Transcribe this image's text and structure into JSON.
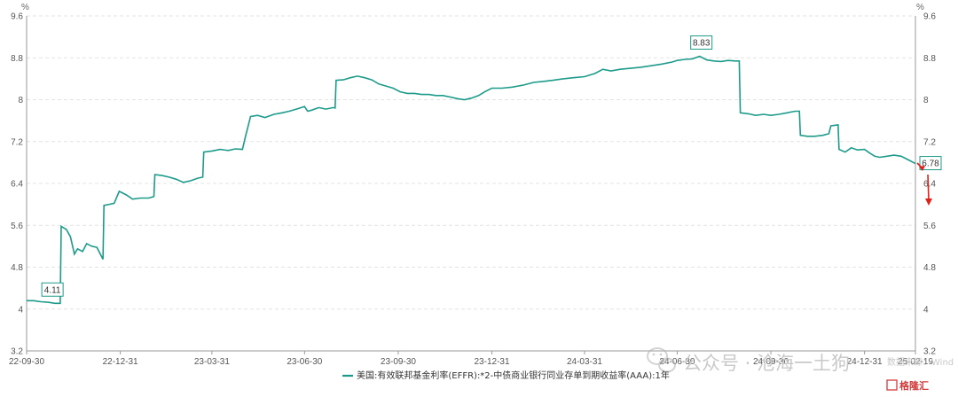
{
  "chart_data": {
    "type": "line",
    "y_unit_left": "%",
    "y_unit_right": "%",
    "ylim": [
      3.2,
      9.6
    ],
    "y_ticks": [
      "3.2",
      "4",
      "4.8",
      "5.6",
      "6.4",
      "7.2",
      "8",
      "8.8",
      "9.6"
    ],
    "x_ticks": [
      "22-09-30",
      "22-12-31",
      "23-03-31",
      "23-06-30",
      "23-09-30",
      "23-12-31",
      "24-03-31",
      "24-06-30",
      "24-09-30",
      "24-12-31",
      "25-02-19"
    ],
    "grid": true,
    "legend_position": "bottom-center",
    "series": [
      {
        "name": "美国:有效联邦基金利率(EFFR):*2-中债商业银行同业存单到期收益率(AAA):1年",
        "color": "#1d9b8a",
        "points": [
          [
            "2022-09-30",
            4.16
          ],
          [
            "2022-10-07",
            4.16
          ],
          [
            "2022-10-14",
            4.14
          ],
          [
            "2022-10-21",
            4.13
          ],
          [
            "2022-10-28",
            4.11
          ],
          [
            "2022-11-02",
            4.11
          ],
          [
            "2022-11-03",
            5.58
          ],
          [
            "2022-11-08",
            5.52
          ],
          [
            "2022-11-12",
            5.38
          ],
          [
            "2022-11-16",
            5.05
          ],
          [
            "2022-11-19",
            5.15
          ],
          [
            "2022-11-24",
            5.1
          ],
          [
            "2022-11-28",
            5.25
          ],
          [
            "2022-12-03",
            5.2
          ],
          [
            "2022-12-08",
            5.18
          ],
          [
            "2022-12-14",
            4.95
          ],
          [
            "2022-12-15",
            5.98
          ],
          [
            "2022-12-20",
            6.0
          ],
          [
            "2022-12-25",
            6.02
          ],
          [
            "2022-12-30",
            6.25
          ],
          [
            "2023-01-06",
            6.18
          ],
          [
            "2023-01-12",
            6.1
          ],
          [
            "2023-01-20",
            6.12
          ],
          [
            "2023-01-28",
            6.12
          ],
          [
            "2023-02-02",
            6.15
          ],
          [
            "2023-02-03",
            6.57
          ],
          [
            "2023-02-10",
            6.55
          ],
          [
            "2023-02-17",
            6.52
          ],
          [
            "2023-02-24",
            6.48
          ],
          [
            "2023-03-03",
            6.42
          ],
          [
            "2023-03-10",
            6.45
          ],
          [
            "2023-03-17",
            6.5
          ],
          [
            "2023-03-22",
            6.52
          ],
          [
            "2023-03-23",
            7.0
          ],
          [
            "2023-03-31",
            7.02
          ],
          [
            "2023-04-08",
            7.05
          ],
          [
            "2023-04-16",
            7.03
          ],
          [
            "2023-04-23",
            7.06
          ],
          [
            "2023-04-30",
            7.05
          ],
          [
            "2023-05-03",
            7.3
          ],
          [
            "2023-05-08",
            7.68
          ],
          [
            "2023-05-15",
            7.7
          ],
          [
            "2023-05-22",
            7.66
          ],
          [
            "2023-05-31",
            7.72
          ],
          [
            "2023-06-08",
            7.75
          ],
          [
            "2023-06-15",
            7.78
          ],
          [
            "2023-06-22",
            7.82
          ],
          [
            "2023-06-30",
            7.87
          ],
          [
            "2023-07-03",
            7.78
          ],
          [
            "2023-07-07",
            7.8
          ],
          [
            "2023-07-14",
            7.85
          ],
          [
            "2023-07-21",
            7.82
          ],
          [
            "2023-07-28",
            7.85
          ],
          [
            "2023-07-30",
            7.84
          ],
          [
            "2023-07-31",
            8.37
          ],
          [
            "2023-08-07",
            8.38
          ],
          [
            "2023-08-14",
            8.42
          ],
          [
            "2023-08-21",
            8.45
          ],
          [
            "2023-08-28",
            8.42
          ],
          [
            "2023-09-04",
            8.38
          ],
          [
            "2023-09-11",
            8.3
          ],
          [
            "2023-09-18",
            8.26
          ],
          [
            "2023-09-25",
            8.22
          ],
          [
            "2023-10-02",
            8.15
          ],
          [
            "2023-10-09",
            8.12
          ],
          [
            "2023-10-16",
            8.12
          ],
          [
            "2023-10-23",
            8.1
          ],
          [
            "2023-10-30",
            8.1
          ],
          [
            "2023-11-06",
            8.08
          ],
          [
            "2023-11-13",
            8.08
          ],
          [
            "2023-11-20",
            8.05
          ],
          [
            "2023-11-27",
            8.02
          ],
          [
            "2023-12-04",
            8.0
          ],
          [
            "2023-12-11",
            8.03
          ],
          [
            "2023-12-18",
            8.08
          ],
          [
            "2023-12-24",
            8.15
          ],
          [
            "2023-12-31",
            8.22
          ],
          [
            "2024-01-10",
            8.22
          ],
          [
            "2024-01-20",
            8.24
          ],
          [
            "2024-01-31",
            8.28
          ],
          [
            "2024-02-10",
            8.33
          ],
          [
            "2024-02-20",
            8.35
          ],
          [
            "2024-02-29",
            8.37
          ],
          [
            "2024-03-10",
            8.4
          ],
          [
            "2024-03-20",
            8.42
          ],
          [
            "2024-03-31",
            8.44
          ],
          [
            "2024-04-10",
            8.5
          ],
          [
            "2024-04-18",
            8.58
          ],
          [
            "2024-04-26",
            8.55
          ],
          [
            "2024-05-05",
            8.58
          ],
          [
            "2024-05-15",
            8.6
          ],
          [
            "2024-05-25",
            8.62
          ],
          [
            "2024-06-05",
            8.65
          ],
          [
            "2024-06-15",
            8.68
          ],
          [
            "2024-06-25",
            8.72
          ],
          [
            "2024-06-30",
            8.75
          ],
          [
            "2024-07-08",
            8.77
          ],
          [
            "2024-07-15",
            8.78
          ],
          [
            "2024-07-22",
            8.83
          ],
          [
            "2024-07-29",
            8.76
          ],
          [
            "2024-08-05",
            8.74
          ],
          [
            "2024-08-12",
            8.73
          ],
          [
            "2024-08-19",
            8.75
          ],
          [
            "2024-08-26",
            8.74
          ],
          [
            "2024-08-30",
            8.74
          ],
          [
            "2024-08-31",
            7.75
          ],
          [
            "2024-09-08",
            7.73
          ],
          [
            "2024-09-15",
            7.7
          ],
          [
            "2024-09-23",
            7.72
          ],
          [
            "2024-09-30",
            7.7
          ],
          [
            "2024-10-08",
            7.72
          ],
          [
            "2024-10-16",
            7.75
          ],
          [
            "2024-10-24",
            7.78
          ],
          [
            "2024-10-28",
            7.78
          ],
          [
            "2024-10-29",
            7.32
          ],
          [
            "2024-11-05",
            7.3
          ],
          [
            "2024-11-12",
            7.3
          ],
          [
            "2024-11-20",
            7.32
          ],
          [
            "2024-11-26",
            7.35
          ],
          [
            "2024-11-28",
            7.5
          ],
          [
            "2024-12-05",
            7.52
          ],
          [
            "2024-12-06",
            7.05
          ],
          [
            "2024-12-12",
            7.0
          ],
          [
            "2024-12-18",
            7.08
          ],
          [
            "2024-12-24",
            7.04
          ],
          [
            "2024-12-31",
            7.05
          ],
          [
            "2025-01-05",
            6.98
          ],
          [
            "2025-01-10",
            6.92
          ],
          [
            "2025-01-15",
            6.9
          ],
          [
            "2025-01-22",
            6.92
          ],
          [
            "2025-01-29",
            6.94
          ],
          [
            "2025-02-05",
            6.92
          ],
          [
            "2025-02-12",
            6.85
          ],
          [
            "2025-02-19",
            6.78
          ]
        ]
      }
    ],
    "annotations": [
      {
        "label": "4.11",
        "date": "2022-10-28",
        "value": 4.11
      },
      {
        "label": "8.83",
        "date": "2024-07-22",
        "value": 8.83
      },
      {
        "label": "6.78",
        "date": "2025-02-19",
        "value": 6.78
      }
    ]
  },
  "watermark": {
    "brand_text": "公众号 · 沧海一土狗",
    "source_text": "数据来源：Wind",
    "logo_text": "格隆汇"
  },
  "colors": {
    "series": "#1d9b8a",
    "arrow": "#e0201b",
    "logo": "#d33b3b"
  }
}
